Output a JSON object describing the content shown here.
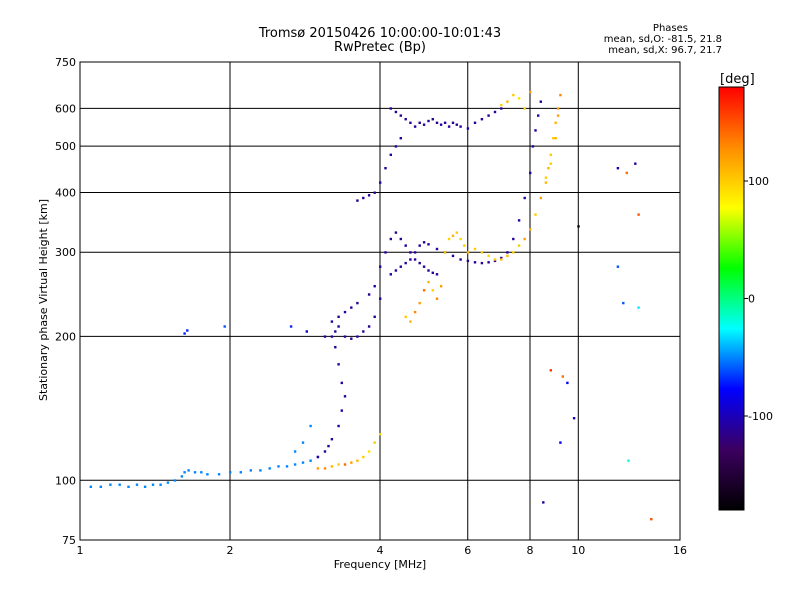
{
  "chart_data": {
    "type": "scatter",
    "title": "Tromsø 20150426 10:00:00-10:01:43",
    "subtitle": "RwPretec (Bp)",
    "phase_title": "Phases",
    "phase_stats": [
      "mean, sd,O: -81.5, 21.8",
      "mean, sd,X: 96.7, 21.7"
    ],
    "xlabel": "Frequency [MHz]",
    "ylabel": "Stationary phase Virtual Height [km]",
    "xscale": "log",
    "yscale": "log",
    "xlim": [
      1,
      16
    ],
    "ylim": [
      75,
      750
    ],
    "xticks": [
      1,
      2,
      4,
      6,
      8,
      10,
      16
    ],
    "yticks": [
      75,
      100,
      200,
      300,
      400,
      500,
      600,
      750
    ],
    "grid": true,
    "colorbar": {
      "label": "[deg]",
      "range": [
        -180,
        180
      ],
      "ticks": [
        100,
        0,
        -100
      ],
      "colors": [
        "#ff0000",
        "#ff8c00",
        "#ffff00",
        "#00ff00",
        "#00ffff",
        "#0000ff",
        "#3c0060",
        "#000000"
      ]
    },
    "series": [
      {
        "x": [
          1.05,
          1.1,
          1.15,
          1.2,
          1.25,
          1.3,
          1.35,
          1.4,
          1.45,
          1.5,
          1.55,
          1.6,
          1.62,
          1.65,
          1.7,
          1.75,
          1.8,
          1.9,
          2.0,
          2.1,
          2.2,
          2.3,
          2.4,
          2.5,
          2.6,
          2.7,
          2.8,
          2.9,
          3.0,
          2.7,
          2.8,
          2.9,
          1.62,
          1.64,
          1.95,
          2.65,
          2.85
        ],
        "y": [
          97,
          97,
          98,
          98,
          97,
          98,
          97,
          98,
          98,
          99,
          100,
          102,
          104,
          105,
          104,
          104,
          103,
          103,
          104,
          104,
          105,
          105,
          106,
          107,
          107,
          108,
          109,
          110,
          112,
          115,
          120,
          130,
          203,
          206,
          210,
          210,
          205
        ],
        "phase": [
          -50,
          -50,
          -50,
          -50,
          -50,
          -50,
          -50,
          -50,
          -50,
          -50,
          -50,
          -50,
          -50,
          -50,
          -50,
          -50,
          -50,
          -50,
          -50,
          -50,
          -50,
          -50,
          -50,
          -50,
          -50,
          -50,
          -50,
          -50,
          -50,
          -50,
          -50,
          -50,
          -70,
          -70,
          -60,
          -70,
          -90
        ]
      },
      {
        "x": [
          3.0,
          3.1,
          3.15,
          3.2,
          3.3,
          3.35,
          3.4,
          3.35,
          3.3,
          3.25,
          3.2,
          3.25,
          3.3,
          3.4,
          3.5,
          3.6,
          3.7,
          3.8,
          3.9,
          4.0,
          3.9,
          3.8,
          3.6,
          3.5,
          3.4,
          3.3,
          3.2,
          3.1,
          3.6,
          3.7,
          3.8,
          3.9,
          4.0,
          4.1,
          4.2,
          4.3,
          4.4
        ],
        "y": [
          112,
          115,
          118,
          122,
          130,
          140,
          150,
          160,
          175,
          190,
          200,
          205,
          210,
          200,
          198,
          200,
          205,
          210,
          220,
          240,
          255,
          245,
          235,
          230,
          225,
          220,
          215,
          200,
          385,
          390,
          395,
          400,
          420,
          450,
          480,
          500,
          520
        ],
        "phase": [
          -110,
          -110,
          -110,
          -110,
          -110,
          -110,
          -110,
          -110,
          -110,
          -110,
          -110,
          -110,
          -110,
          -110,
          -110,
          -110,
          -110,
          -110,
          -110,
          -110,
          -110,
          -110,
          -110,
          -110,
          -110,
          -110,
          -110,
          -110,
          -110,
          -110,
          -110,
          -110,
          -110,
          -110,
          -110,
          -110,
          -110
        ]
      },
      {
        "x": [
          3.0,
          3.1,
          3.2,
          3.3,
          3.4,
          3.5,
          3.6,
          3.7,
          3.8,
          3.9,
          4.0
        ],
        "y": [
          106,
          106,
          107,
          108,
          108,
          109,
          110,
          112,
          115,
          120,
          125
        ],
        "phase": [
          120,
          130,
          110,
          100,
          140,
          120,
          110,
          100,
          90,
          100,
          95
        ]
      },
      {
        "x": [
          4.0,
          4.1,
          4.2,
          4.3,
          4.4,
          4.5,
          4.6,
          4.7,
          4.8,
          4.9,
          5.0,
          5.1,
          5.2,
          4.2,
          4.3,
          4.4,
          4.5,
          4.6,
          4.7,
          4.8,
          4.9,
          5.0,
          5.2,
          5.4,
          5.6,
          5.8,
          6.0,
          6.2,
          6.4,
          6.6,
          6.8,
          7.0,
          7.2,
          7.4,
          7.6,
          7.8,
          8.0,
          8.1,
          8.2,
          8.3,
          8.4
        ],
        "y": [
          280,
          300,
          320,
          330,
          320,
          310,
          300,
          290,
          285,
          280,
          275,
          272,
          270,
          270,
          275,
          280,
          285,
          290,
          300,
          310,
          315,
          312,
          305,
          300,
          295,
          290,
          288,
          286,
          285,
          286,
          288,
          292,
          300,
          320,
          350,
          390,
          440,
          500,
          540,
          580,
          620
        ],
        "phase": [
          -110,
          -110,
          -110,
          -110,
          -110,
          -110,
          -110,
          -110,
          -110,
          -110,
          -110,
          -110,
          -110,
          -110,
          -110,
          -110,
          -110,
          -110,
          -110,
          -110,
          -110,
          -110,
          -110,
          -110,
          -110,
          -110,
          -110,
          -110,
          -110,
          -110,
          -110,
          -110,
          -110,
          -110,
          -110,
          -110,
          -110,
          -110,
          -110,
          -110,
          -110
        ]
      },
      {
        "x": [
          4.2,
          4.3,
          4.4,
          4.5,
          4.6,
          4.7,
          4.8,
          4.9,
          5.0,
          5.1,
          5.2,
          5.3,
          5.4,
          5.5,
          5.6,
          5.7,
          5.8,
          6.0,
          6.2,
          6.4,
          6.6,
          6.8,
          7.0
        ],
        "y": [
          600,
          590,
          580,
          570,
          560,
          550,
          560,
          555,
          565,
          570,
          560,
          555,
          560,
          550,
          560,
          555,
          550,
          545,
          560,
          570,
          580,
          590,
          600
        ],
        "phase": [
          -110,
          -110,
          -110,
          -110,
          -110,
          -110,
          -110,
          -110,
          -110,
          -110,
          -110,
          -110,
          -110,
          -110,
          -110,
          -110,
          -110,
          -110,
          -110,
          -110,
          -110,
          -110,
          -110
        ]
      },
      {
        "x": [
          7.0,
          7.2,
          7.4,
          7.6,
          7.8,
          8.0,
          8.5,
          9.2,
          9.8
        ],
        "y": [
          610,
          620,
          640,
          630,
          600,
          650,
          90,
          120,
          135
        ],
        "phase": [
          100,
          110,
          100,
          90,
          100,
          120,
          -110,
          -80,
          -100
        ]
      },
      {
        "x": [
          4.5,
          4.6,
          4.7,
          4.8,
          4.9,
          5.0,
          5.1,
          5.2,
          5.3,
          5.4,
          5.5,
          5.6,
          5.7,
          5.8,
          5.9,
          6.0,
          6.2,
          6.4,
          6.6,
          6.8,
          7.0,
          7.2,
          7.4,
          7.6,
          7.8,
          8.0,
          8.2,
          8.4,
          8.6,
          8.8,
          9.0,
          9.1,
          9.2,
          9.1,
          9.0,
          8.9,
          8.8,
          8.7,
          8.6
        ],
        "y": [
          220,
          215,
          225,
          235,
          250,
          260,
          250,
          240,
          255,
          300,
          320,
          325,
          330,
          320,
          310,
          300,
          305,
          300,
          295,
          290,
          290,
          295,
          300,
          310,
          320,
          335,
          360,
          390,
          420,
          460,
          520,
          580,
          640,
          600,
          560,
          520,
          480,
          450,
          430
        ],
        "phase": [
          100,
          110,
          130,
          120,
          140,
          110,
          100,
          130,
          120,
          100,
          95,
          110,
          100,
          95,
          100,
          110,
          100,
          100,
          95,
          100,
          105,
          110,
          100,
          100,
          120,
          110,
          100,
          120,
          110,
          100,
          110,
          120,
          130,
          120,
          110,
          100,
          100,
          110,
          100
        ]
      },
      {
        "x": [
          8.8,
          9.5,
          12.0,
          12.5,
          13.0,
          13.2,
          12.3,
          13.2,
          9.3,
          14.0,
          10.0,
          12.0,
          12.6
        ],
        "y": [
          170,
          160,
          450,
          440,
          460,
          360,
          235,
          230,
          165,
          83,
          340,
          280,
          110
        ],
        "phase": [
          160,
          -80,
          -100,
          140,
          -110,
          150,
          -60,
          -30,
          140,
          150,
          -170,
          -60,
          -20
        ]
      }
    ]
  }
}
